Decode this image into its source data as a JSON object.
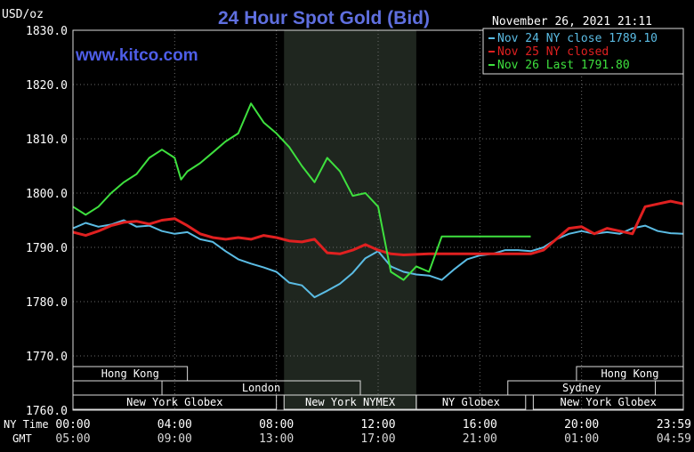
{
  "chart_data": {
    "type": "line",
    "title": "24 Hour Spot Gold (Bid)",
    "watermark": "www.kitco.com",
    "unit_label": "USD/oz",
    "timestamp": "November 26, 2021 21:11",
    "ylim": [
      1760,
      1830
    ],
    "y_ticks": [
      "1830.0",
      "1820.0",
      "1810.0",
      "1800.0",
      "1790.0",
      "1780.0",
      "1770.0",
      "1760.0"
    ],
    "y_tick_values": [
      1830,
      1820,
      1810,
      1800,
      1790,
      1780,
      1770,
      1760
    ],
    "x_range_hours": [
      0,
      24
    ],
    "x_row_labels": [
      "NY Time",
      "GMT"
    ],
    "x_ticks_ny": [
      "00:00",
      "04:00",
      "08:00",
      "12:00",
      "16:00",
      "20:00",
      "23:59"
    ],
    "x_ticks_gmt": [
      "05:00",
      "09:00",
      "13:00",
      "17:00",
      "21:00",
      "01:00",
      "04:59"
    ],
    "x_tick_hours": [
      0,
      4,
      8,
      12,
      16,
      20,
      24
    ],
    "shaded_hours": [
      8.3,
      13.5
    ],
    "sessions": [
      {
        "label": "Hong Kong",
        "row": 0,
        "start": 0,
        "end": 4.5
      },
      {
        "label": "London",
        "row": 1,
        "start": 3.5,
        "end": 11.3
      },
      {
        "label": "New York Globex",
        "row": 2,
        "start": 0,
        "end": 8
      },
      {
        "label": "New York NYMEX",
        "row": 2,
        "start": 8.3,
        "end": 13.5
      },
      {
        "label": "NY Globex",
        "row": 2,
        "start": 13.5,
        "end": 17.8
      },
      {
        "label": "Hong Kong",
        "row": 0,
        "start": 19.8,
        "end": 24
      },
      {
        "label": "Sydney",
        "row": 1,
        "start": 17.1,
        "end": 22.9
      },
      {
        "label": "New York Globex",
        "row": 2,
        "start": 18.1,
        "end": 24
      }
    ],
    "series": [
      {
        "name": "Nov 24 NY close 1789.10",
        "color": "#5bbce4",
        "x": [
          0,
          0.5,
          1,
          1.5,
          2,
          2.5,
          3,
          3.5,
          4,
          4.5,
          5,
          5.5,
          6,
          6.5,
          7,
          7.5,
          8,
          8.5,
          9,
          9.5,
          10,
          10.5,
          11,
          11.5,
          12,
          12.5,
          13,
          13.5,
          14,
          14.5,
          15,
          15.5,
          16,
          16.5,
          17,
          17.5,
          18,
          18.5,
          19,
          19.5,
          20,
          20.5,
          21,
          21.5,
          22,
          22.5,
          23,
          23.5,
          24
        ],
        "values": [
          1793.5,
          1794.5,
          1793.8,
          1794.2,
          1795,
          1793.8,
          1794,
          1793,
          1792.5,
          1792.8,
          1791.5,
          1791,
          1789.3,
          1787.8,
          1787,
          1786.3,
          1785.5,
          1783.5,
          1783,
          1780.8,
          1782,
          1783.3,
          1785.3,
          1788,
          1789.3,
          1786.5,
          1785.5,
          1785,
          1784.8,
          1784,
          1786,
          1787.8,
          1788.5,
          1788.8,
          1789.5,
          1789.5,
          1789.3,
          1790,
          1791.5,
          1792.5,
          1793,
          1792.5,
          1792.8,
          1792.5,
          1793.5,
          1794,
          1793,
          1792.6,
          1792.5
        ]
      },
      {
        "name": "Nov 25 NY closed",
        "color": "#e02020",
        "x": [
          0,
          0.5,
          1,
          1.5,
          2,
          2.5,
          3,
          3.5,
          4,
          4.5,
          5,
          5.5,
          6,
          6.5,
          7,
          7.5,
          8,
          8.5,
          9,
          9.5,
          10,
          10.5,
          11,
          11.5,
          12,
          12.5,
          13,
          13.5,
          14,
          14.5,
          15,
          15.5,
          16,
          16.5,
          17,
          17.5,
          18,
          18.5,
          19,
          19.5,
          20,
          20.5,
          21,
          21.5,
          22,
          22.5,
          23,
          23.5,
          24
        ],
        "values": [
          1792.8,
          1792.2,
          1793,
          1794,
          1794.6,
          1794.8,
          1794.3,
          1795,
          1795.3,
          1794,
          1792.5,
          1791.8,
          1791.5,
          1791.8,
          1791.5,
          1792.2,
          1791.8,
          1791.2,
          1791,
          1791.5,
          1789,
          1788.8,
          1789.5,
          1790.5,
          1789.5,
          1788.8,
          1788.6,
          1788.7,
          1788.8,
          1788.8,
          1788.8,
          1788.8,
          1788.8,
          1788.8,
          1788.8,
          1788.8,
          1788.8,
          1789.5,
          1791.5,
          1793.5,
          1793.8,
          1792.5,
          1793.5,
          1793,
          1792.5,
          1797.5,
          1798,
          1798.5,
          1798
        ]
      },
      {
        "name": "Nov 26 Last 1791.80",
        "color": "#3ee03e",
        "x": [
          0,
          0.5,
          1,
          1.5,
          2,
          2.5,
          3,
          3.5,
          4,
          4.25,
          4.5,
          5,
          5.5,
          6,
          6.5,
          7,
          7.5,
          8,
          8.5,
          9,
          9.5,
          10,
          10.5,
          11,
          11.5,
          12,
          12.5,
          13,
          13.5,
          14,
          14.5,
          15,
          15.5,
          16,
          16.5,
          17,
          17.5,
          18
        ],
        "values": [
          1797.5,
          1796,
          1797.5,
          1800,
          1802,
          1803.5,
          1806.5,
          1808,
          1806.5,
          1802.5,
          1804,
          1805.5,
          1807.5,
          1809.5,
          1811,
          1816.5,
          1813,
          1811,
          1808.5,
          1805,
          1802,
          1806.5,
          1804,
          1799.5,
          1800,
          1797.5,
          1785.5,
          1784,
          1786.5,
          1785.5,
          1792,
          1792,
          1792,
          1792,
          1792,
          1792,
          1792,
          1792
        ]
      }
    ]
  }
}
